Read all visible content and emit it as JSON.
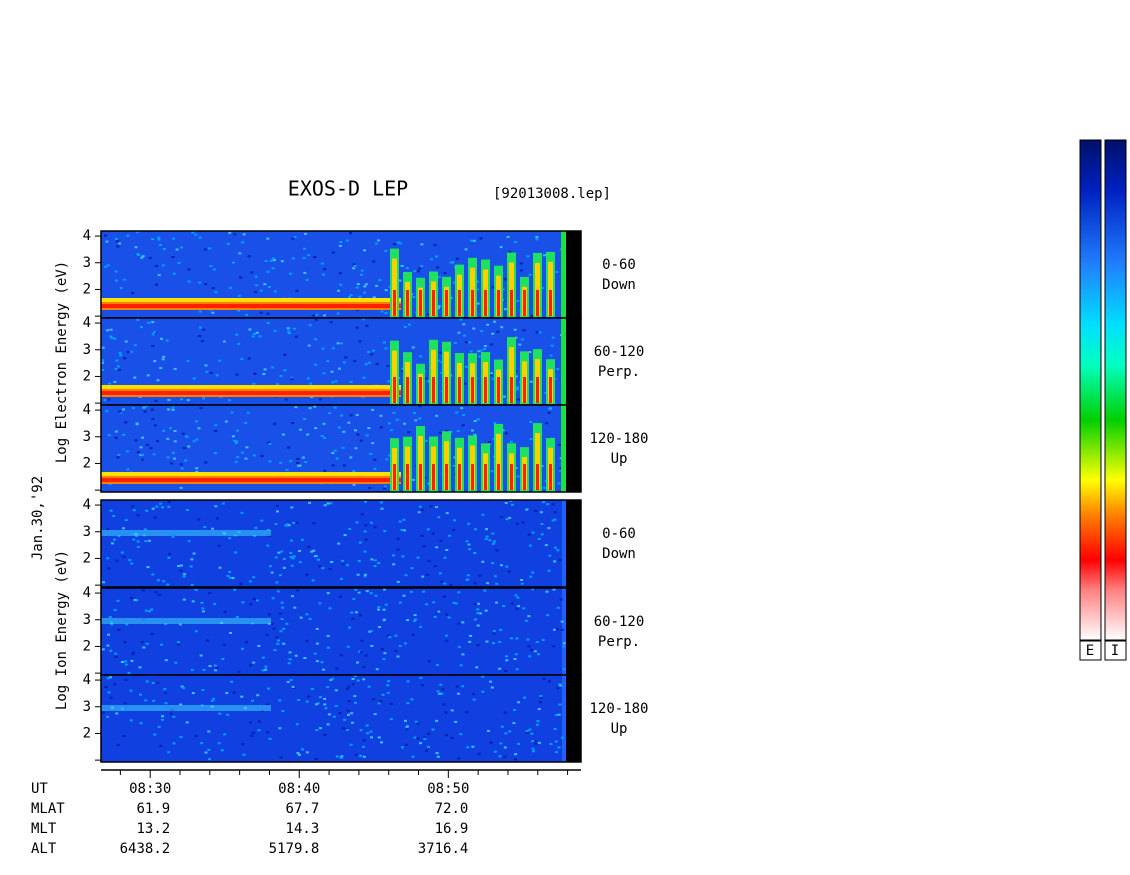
{
  "title": "EXOS-D LEP",
  "filename": "[92013008.lep]",
  "date": "Jan.30,'92",
  "electron_axis_label": "Log  Electron  Energy  (eV)",
  "ion_axis_label": "Log  Ion  Energy  (eV)",
  "ylim": [
    0.93,
    4.19
  ],
  "yticks": [
    2,
    3,
    4
  ],
  "yminor": [
    1
  ],
  "panels": [
    {
      "angle": "0-60",
      "direction": "Down"
    },
    {
      "angle": "60-120",
      "direction": "Perp."
    },
    {
      "angle": "120-180",
      "direction": "Up"
    }
  ],
  "xlim": [
    506.7,
    538.9
  ],
  "xticks": [
    {
      "value": 510,
      "label": "08:30"
    },
    {
      "value": 520,
      "label": "08:40"
    },
    {
      "value": 530,
      "label": "08:50"
    }
  ],
  "xminor": [
    508,
    512,
    514,
    516,
    518,
    522,
    524,
    526,
    528,
    532,
    534,
    536,
    538
  ],
  "ephemeris": {
    "labels": [
      "UT",
      "MLAT",
      "MLT",
      "ALT"
    ],
    "columns": [
      [
        "61.9",
        "13.2",
        "6438.2"
      ],
      [
        "67.7",
        "14.3",
        "5179.8"
      ],
      [
        "72.0",
        "16.9",
        "3716.4"
      ]
    ]
  },
  "colorbars": [
    "E",
    "I"
  ]
}
